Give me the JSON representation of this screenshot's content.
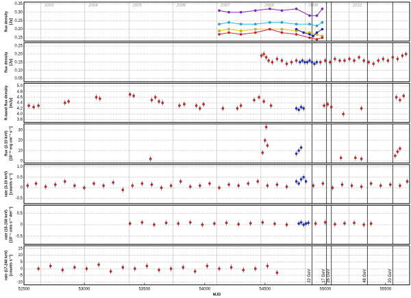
{
  "chart_data": [
    {
      "type": "line",
      "y_label": [
        "flux density",
        "[Jy]"
      ],
      "xlim": [
        52500,
        55700
      ],
      "ylim": [
        0.13,
        0.36
      ],
      "yticks": [
        0.15,
        {
          "value": 0.2,
          "label": "0.20"
        },
        0.25,
        {
          "value": 0.3,
          "label": "0.30"
        },
        0.35
      ],
      "x2ticks": [
        {
          "value": 52640,
          "label": "2003"
        },
        {
          "value": 53005,
          "label": "2004"
        },
        {
          "value": 53371,
          "label": "2005"
        },
        {
          "value": 53736,
          "label": "2006"
        },
        {
          "value": 54101,
          "label": "2007"
        },
        {
          "value": 54466,
          "label": "2008"
        },
        {
          "value": 54832,
          "label": "2009"
        },
        {
          "value": 55197,
          "label": "2010"
        }
      ],
      "series": [
        {
          "color": "#8a1fc4",
          "x": [
            54120,
            54200,
            54300,
            54420,
            54540,
            54640,
            54760,
            54870,
            54930,
            54975
          ],
          "values": [
            0.31,
            0.3,
            0.3,
            0.31,
            0.32,
            0.31,
            0.32,
            0.28,
            0.28,
            0.32
          ]
        },
        {
          "color": "#19b8e6",
          "x": [
            54120,
            54200,
            54300,
            54420,
            54540,
            54640,
            54760,
            54870,
            54930,
            54975
          ],
          "values": [
            0.23,
            0.24,
            0.23,
            0.23,
            0.24,
            0.24,
            0.23,
            0.23,
            0.22,
            0.24
          ]
        },
        {
          "color": "#e8c800",
          "x": [
            54120,
            54200,
            54300,
            54420,
            54540,
            54640,
            54760,
            54870,
            54930,
            54975
          ],
          "values": [
            0.19,
            0.2,
            0.19,
            0.2,
            0.2,
            0.2,
            0.19,
            0.18,
            0.17,
            0.16
          ]
        },
        {
          "color": "#e02020",
          "x": [
            54120,
            54200,
            54300,
            54420,
            54540,
            54640,
            54760,
            54870,
            54930,
            54975
          ],
          "values": [
            0.17,
            0.18,
            0.17,
            0.18,
            0.2,
            0.18,
            0.17,
            0.15,
            0.14,
            0.15
          ]
        },
        {
          "color": "#2020c0",
          "x": [
            54760,
            54820,
            54870,
            54900,
            54930,
            54975
          ],
          "values": [
            0.2,
            0.18,
            0.17,
            0.16,
            0.18,
            0.2
          ]
        }
      ]
    },
    {
      "type": "scatter",
      "y_label": [
        "flux density",
        "[Jy]"
      ],
      "xlim": [
        52500,
        55700
      ],
      "ylim": [
        0.03,
        0.27
      ],
      "yticks": [
        0.05,
        {
          "value": 0.1,
          "label": "0.10"
        },
        0.15,
        {
          "value": 0.2,
          "label": "0.20"
        },
        0.25
      ],
      "series": [
        {
          "color": "#e02020",
          "x": [
            54470,
            54490,
            54510,
            54530,
            54560,
            54600,
            54640,
            54680,
            54720,
            54760,
            54960,
            55000,
            55040,
            55080,
            55120,
            55160,
            55200,
            55240,
            55280,
            55320,
            55360,
            55400,
            55440,
            55480,
            55520,
            55560,
            55600,
            55640,
            55670
          ],
          "values": [
            0.19,
            0.2,
            0.18,
            0.16,
            0.15,
            0.17,
            0.16,
            0.14,
            0.15,
            0.16,
            0.15,
            0.16,
            0.15,
            0.17,
            0.16,
            0.16,
            0.17,
            0.16,
            0.18,
            0.16,
            0.15,
            0.14,
            0.16,
            0.17,
            0.16,
            0.18,
            0.17,
            0.19,
            0.2
          ]
        },
        {
          "color": "#2030d0",
          "x": [
            54790,
            54810,
            54830,
            54850,
            54870,
            54890,
            54910,
            54930
          ],
          "values": [
            0.15,
            0.16,
            0.15,
            0.15,
            0.16,
            0.15,
            0.14,
            0.15
          ]
        }
      ]
    },
    {
      "type": "scatter",
      "y_label": [
        "R-band flux density",
        "[mJy]"
      ],
      "xlim": [
        52500,
        55700
      ],
      "ylim": [
        3.7,
        5.1
      ],
      "yticks": [
        3.8,
        {
          "value": 4,
          "label": "4.0"
        },
        4.2,
        4.4,
        4.6,
        4.8,
        {
          "value": 5,
          "label": "5.0"
        }
      ],
      "series": [
        {
          "color": "#e02020",
          "x": [
            52540,
            52580,
            52620,
            52840,
            52870,
            53100,
            53130,
            53380,
            53410,
            53560,
            53590,
            53620,
            53650,
            53790,
            53830,
            53930,
            53960,
            53990,
            54150,
            54270,
            54300,
            54410,
            54450,
            54490,
            54550,
            54990,
            55020,
            55050,
            55150,
            55300,
            55590,
            55620,
            55650
          ],
          "values": [
            4.3,
            4.25,
            4.3,
            4.4,
            4.45,
            4.6,
            4.55,
            4.7,
            4.65,
            4.5,
            4.6,
            4.45,
            4.4,
            4.3,
            4.35,
            4.3,
            4.2,
            4.35,
            4.2,
            4.2,
            4.3,
            4.5,
            4.6,
            4.45,
            4.3,
            4.3,
            4.35,
            4.25,
            4.0,
            4.2,
            4.6,
            4.5,
            4.65
          ]
        },
        {
          "color": "#2030d0",
          "x": [
            54760,
            54780,
            54800,
            54820
          ],
          "values": [
            4.2,
            4.15,
            4.25,
            4.2
          ]
        }
      ]
    },
    {
      "type": "scatter",
      "y_label": [
        "flux (2-10 keV)",
        "[10⁻¹² erg cm⁻² s⁻¹]"
      ],
      "xlim": [
        52500,
        55700
      ],
      "ylim": [
        -2,
        36
      ],
      "yticks": [
        0,
        10,
        20,
        30
      ],
      "series": [
        {
          "color": "#e02020",
          "x": [
            53550,
            54480,
            54500,
            54510,
            54520,
            55130,
            55250,
            55300,
            55580,
            55600,
            55620
          ],
          "values": [
            2,
            8,
            20,
            33,
            15,
            3,
            3,
            2,
            5,
            9,
            12
          ]
        },
        {
          "color": "#2030d0",
          "x": [
            54760,
            54780,
            54800
          ],
          "values": [
            7,
            10,
            13
          ]
        }
      ]
    },
    {
      "type": "scatter",
      "y_label": [
        "rate (3-10 keV)",
        "[counts s⁻¹]"
      ],
      "xlim": [
        52500,
        55700
      ],
      "ylim": [
        -0.75,
        1.1
      ],
      "yticks": [
        -0.5,
        0,
        0.5,
        {
          "value": 1,
          "label": "1.0"
        }
      ],
      "series": [
        {
          "color": "#e02020",
          "x": [
            52530,
            52600,
            52680,
            52760,
            52840,
            52920,
            53000,
            53080,
            53160,
            53240,
            53320,
            53400,
            53480,
            53560,
            53640,
            53720,
            53800,
            53880,
            53960,
            54040,
            54120,
            54200,
            54280,
            54360,
            54440,
            54520,
            54600,
            54680,
            54900,
            54980,
            55060,
            55140,
            55220,
            55300,
            55380,
            55460,
            55540,
            55620,
            55680
          ],
          "values": [
            0.1,
            0.2,
            0.05,
            0.15,
            0.3,
            0.1,
            0.0,
            0.2,
            0.1,
            0.25,
            -0.1,
            0.1,
            0.2,
            0.15,
            0.0,
            0.1,
            0.3,
            0.05,
            0.1,
            0.2,
            0.0,
            0.15,
            0.1,
            0.2,
            0.3,
            0.1,
            0.15,
            0.05,
            0.1,
            0.2,
            0.0,
            0.15,
            0.1,
            0.05,
            0.2,
            0.1,
            0.15,
            0.1,
            0.3
          ]
        },
        {
          "color": "#2030d0",
          "x": [
            54760,
            54780,
            54800,
            54820,
            54840
          ],
          "values": [
            0.3,
            0.2,
            0.4,
            0.5,
            0.3
          ]
        }
      ]
    },
    {
      "type": "scatter",
      "y_label": [
        "rate (15-150 keV)",
        "[10⁻⁴ cnts s⁻¹ det⁻¹]"
      ],
      "xlim": [
        52500,
        55700
      ],
      "ylim": [
        -0.85,
        0.85
      ],
      "yticks": [
        -0.5,
        0,
        0.5
      ],
      "series": [
        {
          "color": "#e02020",
          "x": [
            53380,
            53480,
            53580,
            53680,
            53780,
            53880,
            53980,
            54080,
            54180,
            54280,
            54380,
            54480,
            54580,
            54680,
            54920,
            55000,
            55080,
            55160,
            55240,
            55320,
            55380
          ],
          "values": [
            0.05,
            0.1,
            0.0,
            0.08,
            0.05,
            0.1,
            0.0,
            0.05,
            0.08,
            0.02,
            0.06,
            0.1,
            0.04,
            0.0,
            0.05,
            0.1,
            0.02,
            0.06,
            0.08,
            0.0,
            0.05
          ]
        },
        {
          "color": "#2030d0",
          "x": [
            54780,
            54800,
            54820,
            54840,
            54860
          ],
          "values": [
            0.05,
            0.1,
            0.0,
            0.05,
            0.08
          ]
        }
      ]
    },
    {
      "type": "scatter",
      "y_label": [
        "rate (17-240 keV)",
        "[counts s⁻¹]"
      ],
      "xlim": [
        52500,
        55700
      ],
      "ylim": [
        -12,
        17
      ],
      "yticks": [
        -10,
        -5,
        0,
        5,
        10,
        15
      ],
      "xticks": [
        52500,
        53000,
        53500,
        54000,
        54500,
        55000,
        55500
      ],
      "x_label": "MJD",
      "annotations": [
        {
          "x": 54890,
          "text": "22 GeV"
        },
        {
          "x": 55010,
          "text": "17 GeV"
        },
        {
          "x": 55050,
          "text": "26 GeV"
        },
        {
          "x": 55350,
          "text": "48 GeV"
        },
        {
          "x": 55560,
          "text": "20 GeV"
        }
      ],
      "series": [
        {
          "color": "#e02020",
          "x": [
            52620,
            52720,
            52820,
            52920,
            53020,
            53120,
            53220,
            53320,
            53420,
            53520,
            53620,
            53720,
            53820,
            53920,
            54020,
            54120,
            54220,
            54320,
            54420,
            54520,
            54600
          ],
          "values": [
            0,
            2,
            -1,
            1,
            0,
            3,
            -2,
            1,
            0,
            2,
            -1,
            0,
            1,
            -2,
            2,
            0,
            1,
            -1,
            0,
            2,
            -3
          ]
        }
      ]
    }
  ]
}
